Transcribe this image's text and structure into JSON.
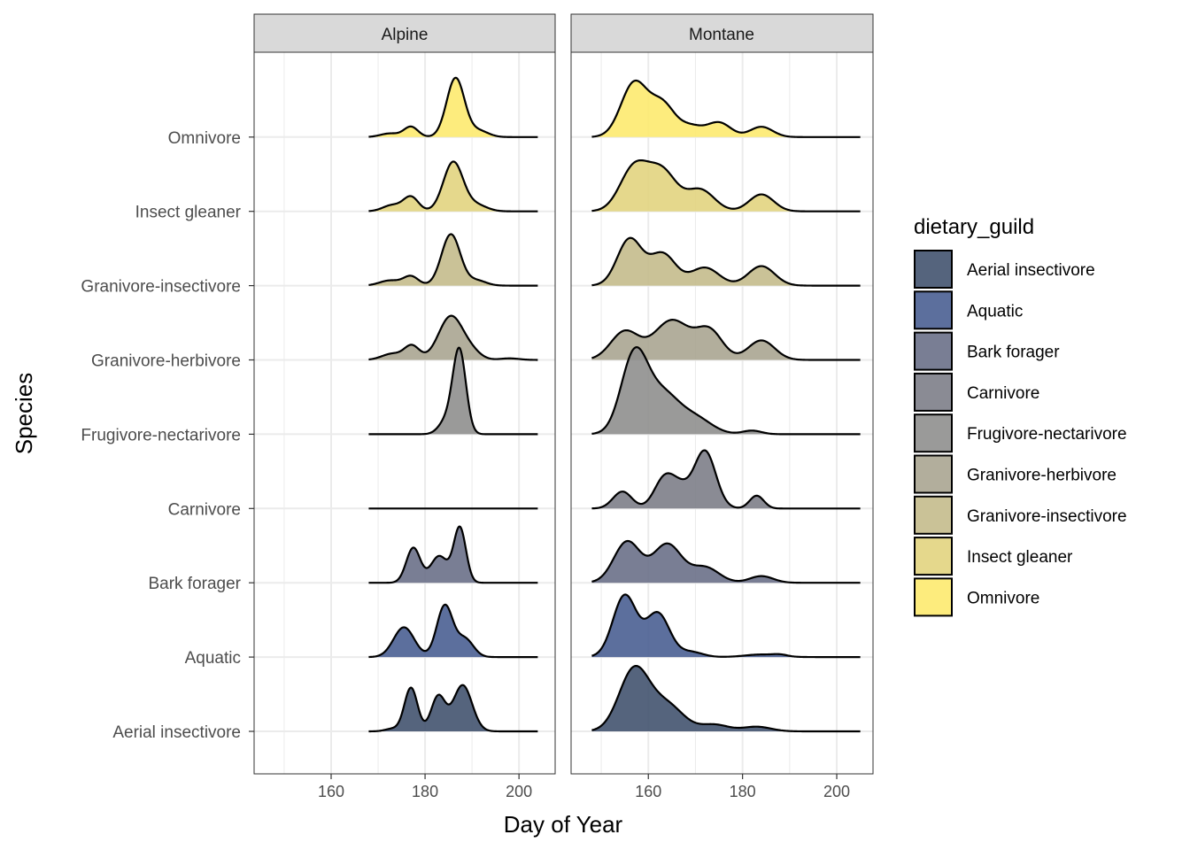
{
  "chart_data": {
    "type": "ridgeline",
    "xlabel": "Day of Year",
    "ylabel": "Species",
    "xlim": [
      143.6,
      207.7
    ],
    "x_ticks": [
      160,
      180,
      200
    ],
    "x_minor_ticks": [
      150,
      170,
      190
    ],
    "grid": true,
    "legend": {
      "title": "dietary_guild",
      "placement": "right",
      "entries": [
        {
          "label": "Aerial insectivore",
          "color": "#43536f"
        },
        {
          "label": "Aquatic",
          "color": "#4a5f92"
        },
        {
          "label": "Bark forager",
          "color": "#6a7088"
        },
        {
          "label": "Carnivore",
          "color": "#7d7e88"
        },
        {
          "label": "Frugivore-nectarivore",
          "color": "#8f8f8e"
        },
        {
          "label": "Granivore-herbivore",
          "color": "#aaa591"
        },
        {
          "label": "Granivore-insectivore",
          "color": "#c4bb8c"
        },
        {
          "label": "Insect gleaner",
          "color": "#e2d47f"
        },
        {
          "label": "Omnivore",
          "color": "#fdea6f"
        }
      ]
    },
    "categories": [
      "Aerial insectivore",
      "Aquatic",
      "Bark forager",
      "Carnivore",
      "Frugivore-nectarivore",
      "Granivore-herbivore",
      "Granivore-insectivore",
      "Insect gleaner",
      "Omnivore"
    ],
    "panels": [
      {
        "title": "Alpine",
        "series": [
          {
            "name": "Aerial insectivore",
            "range": [
              168,
              204
            ],
            "components": [
              [
                177,
                1.4,
                0.85
              ],
              [
                182.8,
                1.5,
                0.68
              ],
              [
                188,
                2.0,
                0.9
              ],
              [
                173,
                1.5,
                0.05
              ]
            ]
          },
          {
            "name": "Aquatic",
            "range": [
              168,
              204
            ],
            "components": [
              [
                175.5,
                2.2,
                0.58
              ],
              [
                184.2,
                1.7,
                1.0
              ],
              [
                188.5,
                1.8,
                0.35
              ]
            ]
          },
          {
            "name": "Bark forager",
            "range": [
              168,
              204
            ],
            "components": [
              [
                177.5,
                1.5,
                0.68
              ],
              [
                183,
                1.8,
                0.52
              ],
              [
                187.4,
                1.3,
                1.07
              ]
            ]
          },
          {
            "name": "Carnivore",
            "range": [
              168,
              204
            ],
            "components": []
          },
          {
            "name": "Frugivore-nectarivore",
            "range": [
              168,
              204
            ],
            "components": [
              [
                187.3,
                1.4,
                1.63
              ],
              [
                184.5,
                1.6,
                0.25
              ]
            ]
          },
          {
            "name": "Granivore-herbivore",
            "range": [
              168,
              204
            ],
            "components": [
              [
                177.2,
                1.6,
                0.27
              ],
              [
                185.5,
                2.6,
                0.85
              ],
              [
                173,
                2.2,
                0.12
              ],
              [
                190,
                2.0,
                0.12
              ],
              [
                198,
                2.0,
                0.03
              ]
            ]
          },
          {
            "name": "Granivore-insectivore",
            "range": [
              168,
              204
            ],
            "components": [
              [
                177,
                1.6,
                0.18
              ],
              [
                185.5,
                2.0,
                1.0
              ],
              [
                172.5,
                2.2,
                0.1
              ],
              [
                191,
                2.0,
                0.1
              ]
            ]
          },
          {
            "name": "Insect gleaner",
            "range": [
              168,
              204
            ],
            "components": [
              [
                177,
                1.6,
                0.28
              ],
              [
                186,
                2.1,
                0.96
              ],
              [
                173,
                2.0,
                0.12
              ],
              [
                191,
                2.2,
                0.12
              ]
            ]
          },
          {
            "name": "Omnivore",
            "range": [
              168,
              204
            ],
            "components": [
              [
                177,
                1.5,
                0.2
              ],
              [
                186.5,
                1.9,
                1.15
              ],
              [
                172.5,
                2.0,
                0.07
              ],
              [
                191.5,
                2.0,
                0.12
              ]
            ]
          }
        ]
      },
      {
        "title": "Montane",
        "series": [
          {
            "name": "Aerial insectivore",
            "range": [
              148,
              205
            ],
            "components": [
              [
                157,
                3.2,
                1.2
              ],
              [
                164,
                3.5,
                0.5
              ],
              [
                174,
                3.0,
                0.13
              ],
              [
                183,
                3.0,
                0.09
              ]
            ]
          },
          {
            "name": "Aquatic",
            "range": [
              148,
              205
            ],
            "components": [
              [
                155,
                2.5,
                1.2
              ],
              [
                162,
                2.5,
                0.85
              ],
              [
                169,
                2.5,
                0.1
              ],
              [
                184,
                3.5,
                0.05
              ],
              [
                188,
                1.5,
                0.03
              ]
            ]
          },
          {
            "name": "Bark forager",
            "range": [
              148,
              205
            ],
            "components": [
              [
                155.5,
                2.8,
                0.8
              ],
              [
                164,
                3.0,
                0.75
              ],
              [
                172,
                3.0,
                0.3
              ],
              [
                184,
                2.5,
                0.13
              ]
            ]
          },
          {
            "name": "Carnivore",
            "range": [
              148,
              205
            ],
            "components": [
              [
                154.5,
                2.0,
                0.33
              ],
              [
                163.5,
                2.2,
                0.6
              ],
              [
                172,
                2.3,
                1.12
              ],
              [
                183,
                1.5,
                0.25
              ],
              [
                167,
                2.0,
                0.3
              ]
            ]
          },
          {
            "name": "Frugivore-nectarivore",
            "range": [
              148,
              205
            ],
            "components": [
              [
                157,
                2.8,
                1.5
              ],
              [
                163,
                3.5,
                0.75
              ],
              [
                170,
                3.5,
                0.3
              ],
              [
                182,
                2.0,
                0.07
              ]
            ]
          },
          {
            "name": "Granivore-herbivore",
            "range": [
              148,
              205
            ],
            "components": [
              [
                155,
                3.0,
                0.55
              ],
              [
                165,
                3.8,
                0.77
              ],
              [
                173,
                2.8,
                0.55
              ],
              [
                184,
                2.8,
                0.38
              ]
            ]
          },
          {
            "name": "Granivore-insectivore",
            "range": [
              148,
              205
            ],
            "components": [
              [
                156,
                2.6,
                0.9
              ],
              [
                163,
                2.8,
                0.62
              ],
              [
                172,
                3.0,
                0.35
              ],
              [
                184,
                2.8,
                0.38
              ]
            ]
          },
          {
            "name": "Insect gleaner",
            "range": [
              148,
              205
            ],
            "components": [
              [
                157,
                3.0,
                0.85
              ],
              [
                163,
                3.0,
                0.75
              ],
              [
                171,
                3.0,
                0.42
              ],
              [
                184,
                2.6,
                0.33
              ]
            ]
          },
          {
            "name": "Omnivore",
            "range": [
              148,
              205
            ],
            "components": [
              [
                157,
                2.8,
                1.05
              ],
              [
                163,
                2.6,
                0.62
              ],
              [
                169,
                2.5,
                0.2
              ],
              [
                175,
                2.5,
                0.28
              ],
              [
                184,
                2.4,
                0.2
              ]
            ]
          }
        ]
      }
    ]
  }
}
